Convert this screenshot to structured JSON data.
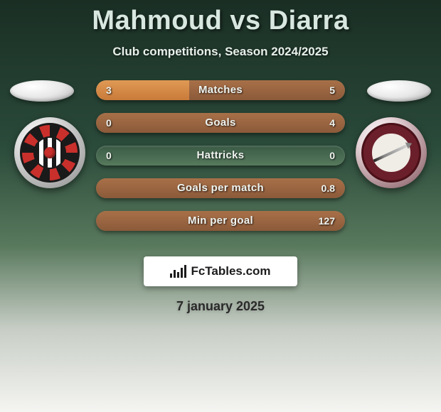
{
  "title": "Mahmoud vs Diarra",
  "subtitle": "Club competitions, Season 2024/2025",
  "date": "7 january 2025",
  "branding": "FcTables.com",
  "colors": {
    "left_fill_start": "#c97a3a",
    "left_fill_end": "#e09a56",
    "right_fill_start": "#8b5a3a",
    "right_fill_end": "#a87048",
    "bar_empty_start": "#3a5a46",
    "bar_empty_end": "#567a5c"
  },
  "bars": [
    {
      "label": "Matches",
      "left_val": "3",
      "right_val": "5",
      "left_pct": 37.5,
      "right_pct": 62.5
    },
    {
      "label": "Goals",
      "left_val": "0",
      "right_val": "4",
      "left_pct": 0,
      "right_pct": 100
    },
    {
      "label": "Hattricks",
      "left_val": "0",
      "right_val": "0",
      "left_pct": 0,
      "right_pct": 0
    },
    {
      "label": "Goals per match",
      "left_val": "",
      "right_val": "0.8",
      "left_pct": 0,
      "right_pct": 100
    },
    {
      "label": "Min per goal",
      "left_val": "",
      "right_val": "127",
      "left_pct": 0,
      "right_pct": 100
    }
  ]
}
